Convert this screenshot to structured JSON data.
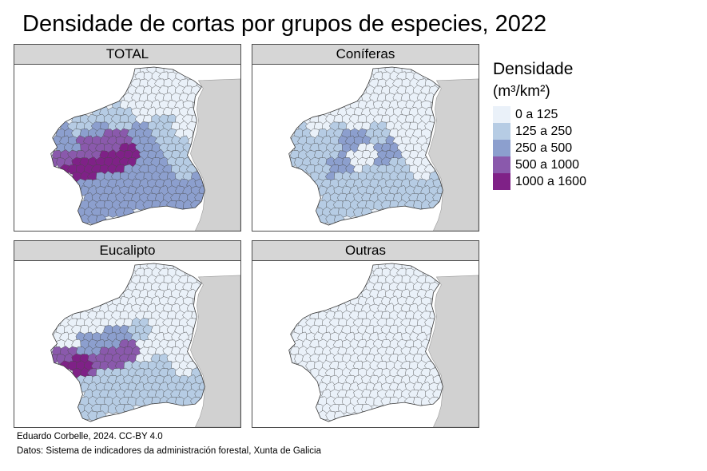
{
  "title": "Densidade de cortas por grupos de especies, 2022",
  "panels": [
    {
      "label": "TOTAL",
      "levels": [
        0,
        0,
        1,
        1,
        2,
        2,
        3,
        3,
        3,
        4,
        4,
        4,
        2,
        1,
        1,
        2
      ]
    },
    {
      "label": "Coníferas",
      "levels": [
        0,
        0,
        0,
        0,
        1,
        1,
        2,
        1,
        1,
        1,
        2,
        0,
        2,
        0,
        0,
        1
      ]
    },
    {
      "label": "Eucalipto",
      "levels": [
        0,
        0,
        0,
        0,
        0,
        1,
        2,
        2,
        3,
        4,
        3,
        3,
        0,
        0,
        0,
        1
      ]
    },
    {
      "label": "Outras",
      "levels": [
        0,
        0,
        0,
        0,
        0,
        0,
        0,
        0,
        0,
        0,
        0,
        0,
        0,
        0,
        0,
        0
      ]
    }
  ],
  "legend": {
    "title": "Densidade",
    "unit": "(m³/km²)",
    "items": [
      {
        "label": "0 a 125",
        "color": "#eaf1f9"
      },
      {
        "label": "125 a 250",
        "color": "#b6cce4"
      },
      {
        "label": "250 a 500",
        "color": "#8c9fce"
      },
      {
        "label": "500 a 1000",
        "color": "#8a59ac"
      },
      {
        "label": "1000 a 1600",
        "color": "#7f2187"
      }
    ]
  },
  "colors": {
    "neighbour": "#d1d1d1",
    "border": "#4a4a4a"
  },
  "caption": {
    "line1": "Eduardo Corbelle, 2024. CC-BY 4.0",
    "line2": "Datos: Sistema de indicadores da administración forestal, Xunta de Galicia"
  }
}
